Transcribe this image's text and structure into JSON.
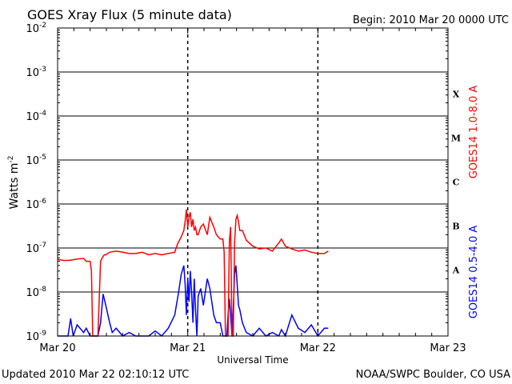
{
  "chart_data": {
    "type": "line",
    "title": "GOES Xray Flux (5 minute data)",
    "begin_label": "Begin:  2010 Mar 20 0000 UTC",
    "ylabel_base": "Watts m",
    "ylabel_exp": "-2",
    "xlabel": "Universal Time",
    "yscale": "log",
    "ylim_exp": [
      -9,
      -2
    ],
    "xlim_days": [
      0,
      3
    ],
    "grid": true,
    "x_ticks": [
      {
        "day": 0,
        "label": "Mar 20"
      },
      {
        "day": 1,
        "label": "Mar 21"
      },
      {
        "day": 2,
        "label": "Mar 22"
      },
      {
        "day": 3,
        "label": "Mar 23"
      }
    ],
    "y_ticks": [
      {
        "base": "10",
        "exp": "-9",
        "e": -9
      },
      {
        "base": "10",
        "exp": "-8",
        "e": -8
      },
      {
        "base": "10",
        "exp": "-7",
        "e": -7
      },
      {
        "base": "10",
        "exp": "-6",
        "e": -6
      },
      {
        "base": "10",
        "exp": "-5",
        "e": -5
      },
      {
        "base": "10",
        "exp": "-4",
        "e": -4
      },
      {
        "base": "10",
        "exp": "-3",
        "e": -3
      },
      {
        "base": "10",
        "exp": "-2",
        "e": -2
      }
    ],
    "flare_classes": [
      {
        "label": "A",
        "e": -8
      },
      {
        "label": "B",
        "e": -7
      },
      {
        "label": "C",
        "e": -6
      },
      {
        "label": "M",
        "e": -5
      },
      {
        "label": "X",
        "e": -4
      }
    ],
    "series": [
      {
        "name": "GOES14 1.0-8.0 A",
        "color": "#ff0000",
        "x": [
          0.0,
          0.05,
          0.1,
          0.15,
          0.2,
          0.22,
          0.25,
          0.26,
          0.27,
          0.29,
          0.3,
          0.31,
          0.33,
          0.35,
          0.36,
          0.37,
          0.4,
          0.45,
          0.5,
          0.55,
          0.6,
          0.65,
          0.7,
          0.75,
          0.8,
          0.85,
          0.9,
          0.92,
          0.95,
          0.97,
          0.98,
          0.99,
          1.0,
          1.01,
          1.02,
          1.03,
          1.04,
          1.05,
          1.06,
          1.07,
          1.08,
          1.1,
          1.12,
          1.15,
          1.17,
          1.2,
          1.22,
          1.25,
          1.27,
          1.28,
          1.29,
          1.3,
          1.31,
          1.32,
          1.33,
          1.34,
          1.35,
          1.36,
          1.37,
          1.38,
          1.39,
          1.4,
          1.42,
          1.45,
          1.5,
          1.55,
          1.6,
          1.65,
          1.7,
          1.72,
          1.75,
          1.8,
          1.85,
          1.9,
          1.95,
          2.0,
          2.05,
          2.08
        ],
        "y": [
          5.5e-08,
          5.2e-08,
          5.3e-08,
          5.6e-08,
          5.8e-08,
          5e-08,
          5e-08,
          3e-08,
          1e-09,
          1e-09,
          1e-09,
          1e-09,
          5e-08,
          6.5e-08,
          7e-08,
          7e-08,
          8e-08,
          8.5e-08,
          8e-08,
          7.5e-08,
          7.5e-08,
          8e-08,
          7e-08,
          7.5e-08,
          7e-08,
          7.5e-08,
          8e-08,
          1.2e-07,
          1.8e-07,
          2.5e-07,
          4e-07,
          7.5e-07,
          3e-07,
          5e-07,
          6.5e-07,
          3e-07,
          4.5e-07,
          2.5e-07,
          3e-07,
          2e-07,
          2e-07,
          3e-07,
          3.5e-07,
          2e-07,
          5e-07,
          3e-07,
          2e-07,
          1.6e-07,
          1.6e-07,
          8e-08,
          1e-09,
          1e-09,
          1e-09,
          1.4e-07,
          3e-07,
          1e-09,
          1e-09,
          1.3e-07,
          4.5e-07,
          5.5e-07,
          4e-07,
          2.5e-07,
          2.5e-07,
          1.5e-07,
          1.1e-07,
          9.5e-08,
          1e-07,
          8.5e-08,
          1.3e-07,
          1.6e-07,
          1.1e-07,
          9.5e-08,
          8.5e-08,
          9e-08,
          8e-08,
          7.5e-08,
          7.5e-08,
          8.5e-08
        ]
      },
      {
        "name": "GOES14 0.5-4.0 A",
        "color": "#0000ff",
        "x": [
          0.0,
          0.05,
          0.08,
          0.1,
          0.12,
          0.15,
          0.2,
          0.22,
          0.25,
          0.27,
          0.29,
          0.3,
          0.31,
          0.33,
          0.35,
          0.37,
          0.4,
          0.42,
          0.45,
          0.5,
          0.55,
          0.6,
          0.65,
          0.7,
          0.75,
          0.8,
          0.85,
          0.9,
          0.93,
          0.95,
          0.97,
          0.98,
          0.99,
          1.0,
          1.01,
          1.02,
          1.03,
          1.04,
          1.05,
          1.06,
          1.07,
          1.08,
          1.1,
          1.12,
          1.15,
          1.17,
          1.2,
          1.22,
          1.25,
          1.27,
          1.28,
          1.29,
          1.3,
          1.31,
          1.32,
          1.33,
          1.34,
          1.35,
          1.36,
          1.37,
          1.38,
          1.39,
          1.4,
          1.42,
          1.45,
          1.5,
          1.55,
          1.6,
          1.65,
          1.7,
          1.72,
          1.75,
          1.8,
          1.85,
          1.9,
          1.95,
          2.0,
          2.05,
          2.08
        ],
        "y": [
          1e-09,
          1e-09,
          1e-09,
          2.5e-09,
          1e-09,
          1.8e-09,
          1.2e-09,
          1.5e-09,
          1e-09,
          1e-09,
          1e-09,
          1e-09,
          1e-09,
          2e-09,
          9e-09,
          5e-09,
          2e-09,
          1.2e-09,
          1.5e-09,
          1e-09,
          1.2e-09,
          1e-09,
          1e-09,
          1e-09,
          1.3e-09,
          1e-09,
          1.5e-09,
          3e-09,
          1e-08,
          2.5e-08,
          4e-08,
          1.5e-08,
          3e-09,
          2e-08,
          6e-09,
          3e-08,
          1e-08,
          2e-09,
          2e-08,
          4e-09,
          1e-09,
          8e-09,
          1.2e-08,
          5e-09,
          2e-08,
          1.2e-08,
          3e-09,
          2e-09,
          2e-09,
          1e-09,
          1e-09,
          1e-09,
          1e-09,
          3e-09,
          7e-09,
          3e-09,
          1e-09,
          4e-09,
          2.5e-08,
          4e-08,
          1.5e-08,
          5e-09,
          4e-09,
          2e-09,
          1.2e-09,
          1e-09,
          1.5e-09,
          1e-09,
          1.2e-09,
          1e-09,
          1.4e-09,
          1e-09,
          3e-09,
          1.5e-09,
          1.2e-09,
          1.8e-09,
          1e-09,
          1.5e-09,
          1.5e-09
        ]
      }
    ]
  },
  "footer": {
    "updated": "Updated 2010 Mar 22 02:10:12 UTC",
    "credit": "NOAA/SWPC Boulder, CO USA"
  }
}
